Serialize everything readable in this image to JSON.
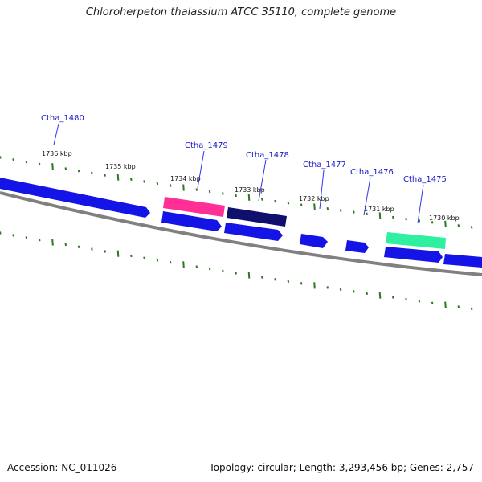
{
  "title": "Chloroherpeton thalassium ATCC 35110, complete genome",
  "footer": {
    "accession": "Accession: NC_011026",
    "summary": "Topology: circular; Length: 3,293,456 bp; Genes: 2,757"
  },
  "colors": {
    "backbone": "#808080",
    "tick": "#2a7a1e",
    "label_line": "#3333ee",
    "gene_default": "#1414e6",
    "gene_pink": "#ff2f95",
    "gene_navy": "#0f0f6e",
    "gene_teal": "#2ef0a0"
  },
  "scale_labels": [
    "1736 kbp",
    "1735 kbp",
    "1734 kbp",
    "1733 kbp",
    "1732 kbp",
    "1731 kbp",
    "1730 kbp"
  ],
  "gene_labels": [
    "Ctha_1480",
    "Ctha_1479",
    "Ctha_1478",
    "Ctha_1477",
    "Ctha_1476",
    "Ctha_1475"
  ]
}
